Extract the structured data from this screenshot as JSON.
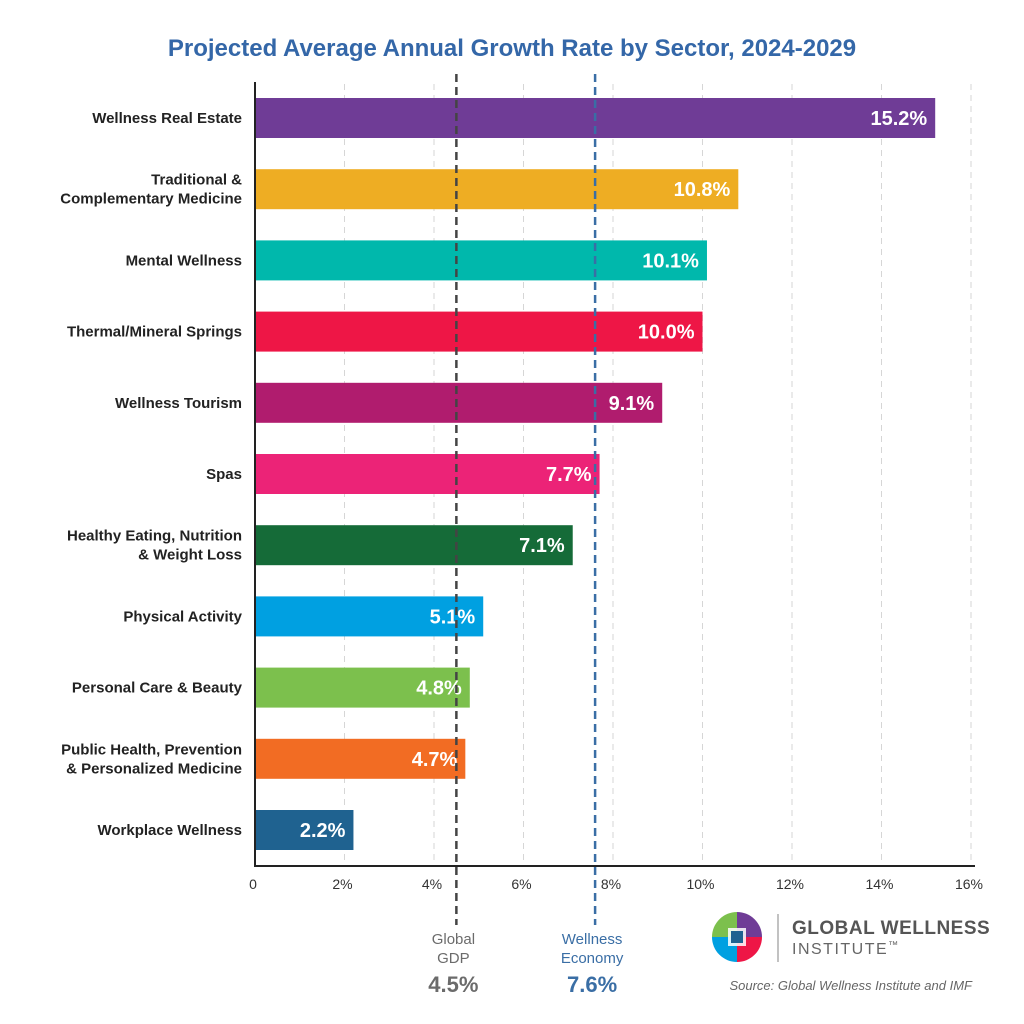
{
  "chart_data": {
    "type": "bar",
    "orientation": "horizontal",
    "title": "Projected Average Annual Growth Rate by Sector, 2024-2029",
    "categories": [
      "Wellness Real Estate",
      "Traditional & Complementary Medicine",
      "Mental Wellness",
      "Thermal/Mineral Springs",
      "Wellness Tourism",
      "Spas",
      "Healthy Eating, Nutrition & Weight Loss",
      "Physical Activity",
      "Personal Care & Beauty",
      "Public Health, Prevention & Personalized Medicine",
      "Workplace Wellness"
    ],
    "category_lines": [
      [
        "Wellness Real Estate"
      ],
      [
        "Traditional &",
        "Complementary Medicine"
      ],
      [
        "Mental Wellness"
      ],
      [
        "Thermal/Mineral Springs"
      ],
      [
        "Wellness Tourism"
      ],
      [
        "Spas"
      ],
      [
        "Healthy Eating, Nutrition",
        "& Weight Loss"
      ],
      [
        "Physical Activity"
      ],
      [
        "Personal Care & Beauty"
      ],
      [
        "Public Health, Prevention",
        "& Personalized Medicine"
      ],
      [
        "Workplace Wellness"
      ]
    ],
    "values": [
      15.2,
      10.8,
      10.1,
      10.0,
      9.1,
      7.7,
      7.1,
      5.1,
      4.8,
      4.7,
      2.2
    ],
    "value_labels": [
      "15.2%",
      "10.8%",
      "10.1%",
      "10.0%",
      "9.1%",
      "7.7%",
      "7.1%",
      "5.1%",
      "4.8%",
      "4.7%",
      "2.2%"
    ],
    "colors": [
      "#6F3C96",
      "#EEAD23",
      "#00B8AC",
      "#EE1646",
      "#B01C6E",
      "#EC2377",
      "#156B38",
      "#00A0E1",
      "#7CC04D",
      "#F26C23",
      "#1F6290"
    ],
    "xlim": [
      0,
      16
    ],
    "xticks": [
      0,
      2,
      4,
      6,
      8,
      10,
      12,
      14,
      16
    ],
    "xtick_labels": [
      "0",
      "2%",
      "4%",
      "6%",
      "8%",
      "10%",
      "12%",
      "14%",
      "16%"
    ],
    "grid": "vertical dashed",
    "reference_lines": [
      {
        "label_lines": [
          "Global",
          "GDP"
        ],
        "value": 4.5,
        "value_label": "4.5%",
        "color": "#444444",
        "text_color": "#6b6b6b"
      },
      {
        "label_lines": [
          "Wellness",
          "Economy"
        ],
        "value": 7.6,
        "value_label": "7.6%",
        "color": "#3A6EA5",
        "text_color": "#3A6EA5"
      }
    ],
    "title_color": "#3467A8"
  },
  "logo": {
    "name": "GLOBAL WELLNESS",
    "sub": "INSTITUTE",
    "tm": "™"
  },
  "source": "Source: Global Wellness Institute and IMF"
}
